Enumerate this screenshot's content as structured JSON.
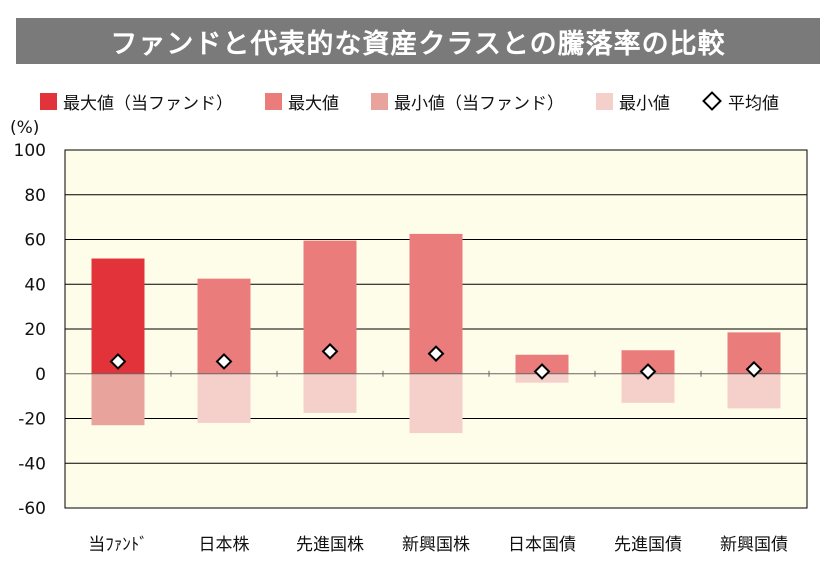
{
  "title": "ファンドと代表的な資産クラスとの騰落率の比較",
  "legend": [
    {
      "label": "最大値（当ファンド）",
      "color": "#e2323a",
      "kind": "box"
    },
    {
      "label": "最大値",
      "color": "#eb7c7c",
      "kind": "box"
    },
    {
      "label": "最小値（当ファンド）",
      "color": "#e8a39c",
      "kind": "box"
    },
    {
      "label": "最小値",
      "color": "#f5d0ca",
      "kind": "box"
    },
    {
      "label": "平均値",
      "color": "#000000",
      "kind": "diamond"
    }
  ],
  "colors": {
    "plot_bg": "#fefde9",
    "fund_max": "#e2323a",
    "asset_max": "#eb7c7c",
    "fund_min": "#e8a39c",
    "asset_min": "#f5d0ca",
    "grid": "#000000"
  },
  "chart_data": {
    "type": "bar",
    "unit": "(%)",
    "ylim": [
      -60,
      100
    ],
    "yticks": [
      100,
      80,
      60,
      40,
      20,
      0,
      -20,
      -40,
      -60
    ],
    "categories": [
      "当ﾌｧﾝﾄﾞ",
      "日本株",
      "先進国株",
      "新興国株",
      "日本国債",
      "先進国債",
      "新興国債"
    ],
    "series": [
      {
        "name": "最大値",
        "values": [
          51.5,
          42.5,
          59.5,
          62.5,
          8.5,
          10.5,
          18.5
        ]
      },
      {
        "name": "最小値",
        "values": [
          -23,
          -22,
          -17.5,
          -26.5,
          -4,
          -13,
          -15.5
        ]
      },
      {
        "name": "平均値",
        "values": [
          5.5,
          5.5,
          10.0,
          9.0,
          1.0,
          1.0,
          2.0
        ]
      }
    ],
    "fund_index": 0
  }
}
